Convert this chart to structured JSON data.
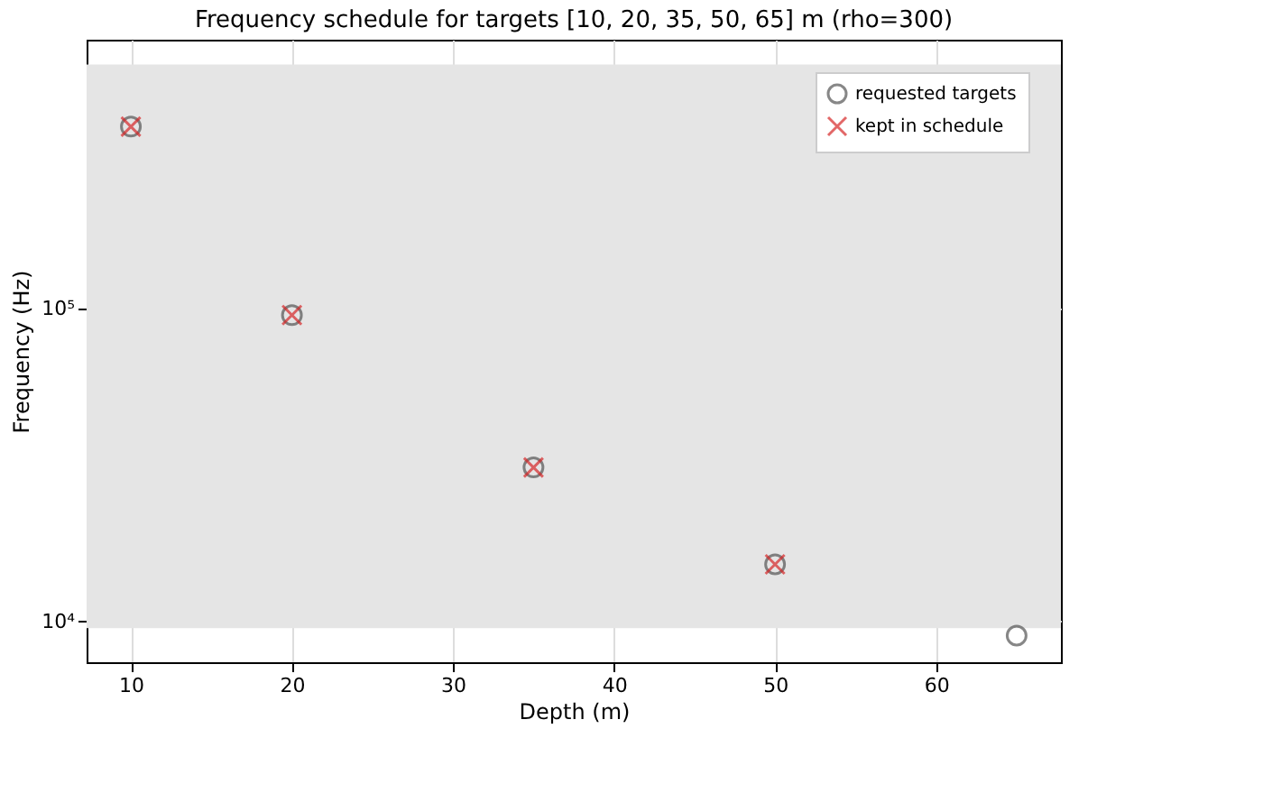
{
  "chart_data": {
    "type": "scatter",
    "title": "Frequency schedule for targets [10, 20, 35, 50, 65] m  (rho=300)",
    "xlabel": "Depth (m)",
    "ylabel": "Frequency (Hz)",
    "series": [
      {
        "name": "requested targets",
        "color": "#555555",
        "marker": "circle",
        "x": [
          10,
          20,
          35,
          50,
          65
        ],
        "values": [
          380000,
          95000,
          31000,
          15200,
          9000
        ]
      },
      {
        "name": "kept in schedule",
        "color": "#d62728",
        "marker": "cross",
        "x": [
          10,
          20,
          35,
          50
        ],
        "values": [
          380000,
          95000,
          31000,
          15200
        ]
      }
    ],
    "bands": [
      {
        "axis": "y",
        "from": 9500,
        "to": 600000,
        "color": "#e5e5e5"
      }
    ],
    "log": "y",
    "xlim": [
      7.25,
      67.75
    ],
    "xticks": [
      10,
      20,
      30,
      40,
      50,
      60
    ],
    "ylim": [
      7400,
      720000
    ],
    "yticks": [
      {
        "value": 10000,
        "label": "10⁴"
      },
      {
        "value": 100000,
        "label": "10⁵"
      }
    ],
    "grid": true,
    "legend": "top right"
  }
}
